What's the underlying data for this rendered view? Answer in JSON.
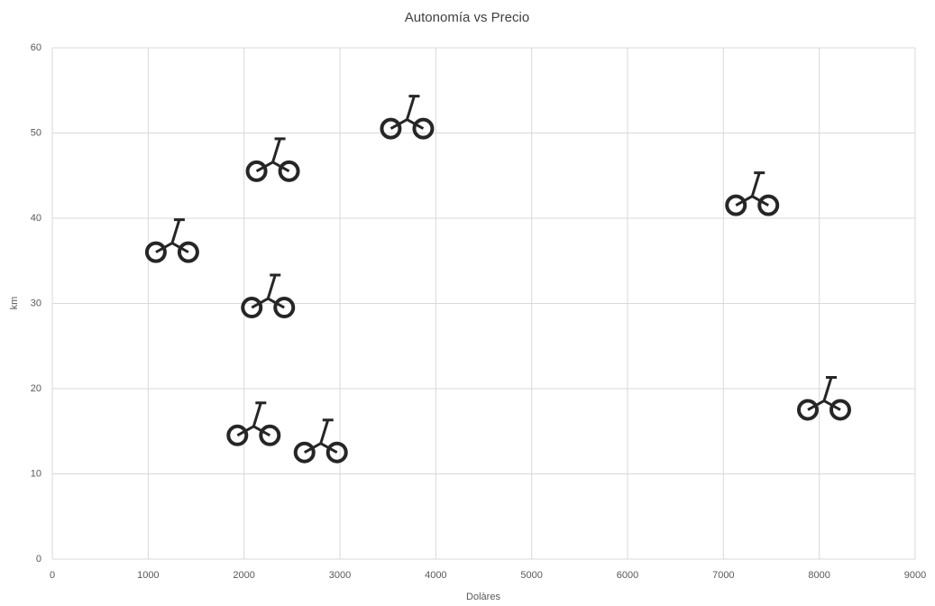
{
  "chart_data": {
    "type": "scatter",
    "title": "Autonomía vs Precio",
    "x_label": "Dolàres",
    "y_label": "km",
    "x": [
      1250,
      2300,
      3700,
      7300,
      2250,
      2100,
      2800,
      8050
    ],
    "values": [
      37.5,
      47,
      52,
      43,
      31,
      16,
      14,
      19
    ],
    "color": "#262626",
    "xlim": [
      0,
      9000
    ],
    "xticks": [
      0,
      1000,
      2000,
      3000,
      4000,
      5000,
      6000,
      7000,
      8000,
      9000
    ],
    "ylim": [
      0,
      60
    ],
    "yticks": [
      0,
      10,
      20,
      30,
      40,
      50,
      60
    ],
    "grid": true
  }
}
